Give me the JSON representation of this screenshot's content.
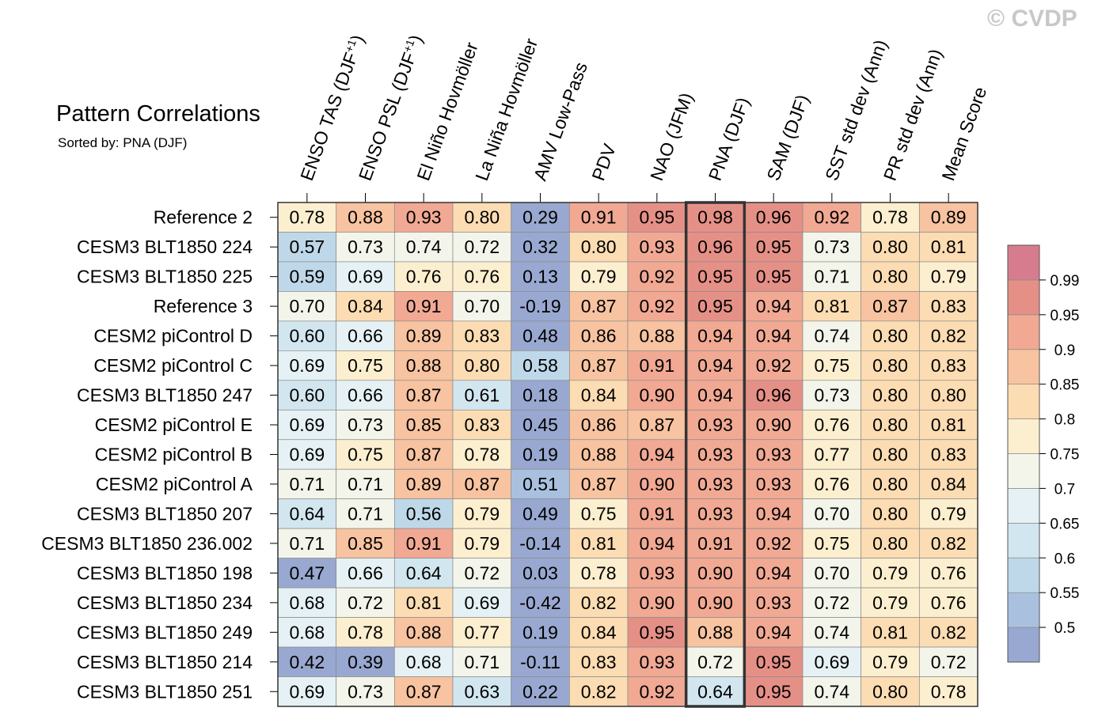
{
  "copyright": "© CVDP",
  "chart_data": {
    "type": "heatmap",
    "title": "Pattern Correlations",
    "subtitle": "Sorted by: PNA (DJF)",
    "highlight_column": "PNA (DJF)",
    "columns": [
      {
        "label": "ENSO TAS (DJF",
        "sup": "+1",
        "suffix": ")"
      },
      {
        "label": "ENSO PSL (DJF",
        "sup": "+1",
        "suffix": ")"
      },
      {
        "label": "El Niño Hovmöller",
        "sup": "",
        "suffix": ""
      },
      {
        "label": "La Niña Hovmöller",
        "sup": "",
        "suffix": ""
      },
      {
        "label": "AMV Low-Pass",
        "sup": "",
        "suffix": ""
      },
      {
        "label": "PDV",
        "sup": "",
        "suffix": ""
      },
      {
        "label": "NAO (JFM)",
        "sup": "",
        "suffix": ""
      },
      {
        "label": "PNA (DJF)",
        "sup": "",
        "suffix": ""
      },
      {
        "label": "SAM (DJF)",
        "sup": "",
        "suffix": ""
      },
      {
        "label": "SST std dev (Ann)",
        "sup": "",
        "suffix": ""
      },
      {
        "label": "PR std dev (Ann)",
        "sup": "",
        "suffix": ""
      },
      {
        "label": "Mean Score",
        "sup": "",
        "suffix": ""
      }
    ],
    "rows": [
      {
        "label": "Reference 2",
        "values": [
          "0.78",
          "0.88",
          "0.93",
          "0.80",
          "0.29",
          "0.91",
          "0.95",
          "0.98",
          "0.96",
          "0.92",
          "0.78",
          "0.89"
        ]
      },
      {
        "label": "CESM3 BLT1850 224",
        "values": [
          "0.57",
          "0.73",
          "0.74",
          "0.72",
          "0.32",
          "0.80",
          "0.93",
          "0.96",
          "0.95",
          "0.73",
          "0.80",
          "0.81"
        ]
      },
      {
        "label": "CESM3 BLT1850 225",
        "values": [
          "0.59",
          "0.69",
          "0.76",
          "0.76",
          "0.13",
          "0.79",
          "0.92",
          "0.95",
          "0.95",
          "0.71",
          "0.80",
          "0.79"
        ]
      },
      {
        "label": "Reference 3",
        "values": [
          "0.70",
          "0.84",
          "0.91",
          "0.70",
          "-0.19",
          "0.87",
          "0.92",
          "0.95",
          "0.94",
          "0.81",
          "0.87",
          "0.83"
        ]
      },
      {
        "label": "CESM2 piControl D",
        "values": [
          "0.60",
          "0.66",
          "0.89",
          "0.83",
          "0.48",
          "0.86",
          "0.88",
          "0.94",
          "0.94",
          "0.74",
          "0.80",
          "0.82"
        ]
      },
      {
        "label": "CESM2 piControl C",
        "values": [
          "0.69",
          "0.75",
          "0.88",
          "0.80",
          "0.58",
          "0.87",
          "0.91",
          "0.94",
          "0.92",
          "0.75",
          "0.80",
          "0.83"
        ]
      },
      {
        "label": "CESM3 BLT1850 247",
        "values": [
          "0.60",
          "0.66",
          "0.87",
          "0.61",
          "0.18",
          "0.84",
          "0.90",
          "0.94",
          "0.96",
          "0.73",
          "0.80",
          "0.80"
        ]
      },
      {
        "label": "CESM2 piControl E",
        "values": [
          "0.69",
          "0.73",
          "0.85",
          "0.83",
          "0.45",
          "0.86",
          "0.87",
          "0.93",
          "0.90",
          "0.76",
          "0.80",
          "0.81"
        ]
      },
      {
        "label": "CESM2 piControl B",
        "values": [
          "0.69",
          "0.75",
          "0.87",
          "0.78",
          "0.19",
          "0.88",
          "0.94",
          "0.93",
          "0.93",
          "0.77",
          "0.80",
          "0.83"
        ]
      },
      {
        "label": "CESM2 piControl A",
        "values": [
          "0.71",
          "0.71",
          "0.89",
          "0.87",
          "0.51",
          "0.87",
          "0.90",
          "0.93",
          "0.93",
          "0.76",
          "0.80",
          "0.84"
        ]
      },
      {
        "label": "CESM3 BLT1850 207",
        "values": [
          "0.64",
          "0.71",
          "0.56",
          "0.79",
          "0.49",
          "0.75",
          "0.91",
          "0.93",
          "0.94",
          "0.70",
          "0.80",
          "0.79"
        ]
      },
      {
        "label": "CESM3 BLT1850 236.002",
        "values": [
          "0.71",
          "0.85",
          "0.91",
          "0.79",
          "-0.14",
          "0.81",
          "0.94",
          "0.91",
          "0.92",
          "0.75",
          "0.80",
          "0.82"
        ]
      },
      {
        "label": "CESM3 BLT1850 198",
        "values": [
          "0.47",
          "0.66",
          "0.64",
          "0.72",
          "0.03",
          "0.78",
          "0.93",
          "0.90",
          "0.94",
          "0.70",
          "0.79",
          "0.76"
        ]
      },
      {
        "label": "CESM3 BLT1850 234",
        "values": [
          "0.68",
          "0.72",
          "0.81",
          "0.69",
          "-0.42",
          "0.82",
          "0.90",
          "0.90",
          "0.93",
          "0.72",
          "0.79",
          "0.76"
        ]
      },
      {
        "label": "CESM3 BLT1850 249",
        "values": [
          "0.68",
          "0.78",
          "0.88",
          "0.77",
          "0.19",
          "0.84",
          "0.95",
          "0.88",
          "0.94",
          "0.74",
          "0.81",
          "0.82"
        ]
      },
      {
        "label": "CESM3 BLT1850 214",
        "values": [
          "0.42",
          "0.39",
          "0.68",
          "0.71",
          "-0.11",
          "0.83",
          "0.93",
          "0.72",
          "0.95",
          "0.69",
          "0.79",
          "0.72"
        ]
      },
      {
        "label": "CESM3 BLT1850 251",
        "values": [
          "0.69",
          "0.73",
          "0.87",
          "0.63",
          "0.22",
          "0.82",
          "0.92",
          "0.64",
          "0.95",
          "0.74",
          "0.80",
          "0.78"
        ]
      }
    ],
    "colorbar": {
      "levels": [
        0.5,
        0.55,
        0.6,
        0.65,
        0.7,
        0.75,
        0.8,
        0.85,
        0.9,
        0.95,
        0.99
      ],
      "labels": [
        "0.5",
        "0.55",
        "0.6",
        "0.65",
        "0.7",
        "0.75",
        "0.8",
        "0.85",
        "0.9",
        "0.95",
        "0.99"
      ],
      "colors": [
        "#98a8d0",
        "#a9c1df",
        "#bfd8e9",
        "#d2e6f0",
        "#e5f1f4",
        "#f3f4ea",
        "#fcefcf",
        "#fcdcb2",
        "#f7c3a0",
        "#f1a994",
        "#e59087",
        "#d77c8f"
      ]
    }
  }
}
